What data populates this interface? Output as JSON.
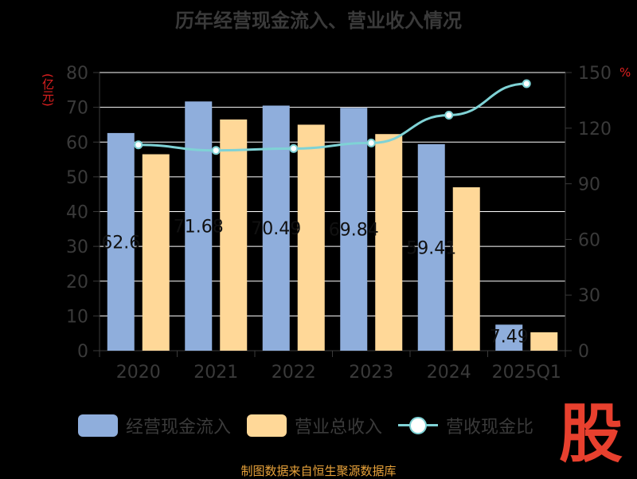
{
  "title": "历年经营现金流入、营业收入情况",
  "left_unit": "(亿元)",
  "right_unit": "%",
  "footer": "制图数据来自恒生聚源数据库",
  "logo_text": "股",
  "colors": {
    "cash_inflow": "#8faedc",
    "revenue": "#ffd898",
    "ratio_line": "#7fd2d5",
    "axis_text": "#3a3a3a",
    "unit_text": "#e02020",
    "grid": "#ffffff",
    "footer": "#e8a23a",
    "logo": "#e8402e"
  },
  "legend": {
    "cash_inflow": "经营现金流入",
    "revenue": "营业总收入",
    "ratio": "营收现金比"
  },
  "chart_data": {
    "type": "bar",
    "categories": [
      "2020",
      "2021",
      "2022",
      "2023",
      "2024",
      "2025Q1"
    ],
    "series": [
      {
        "name": "经营现金流入",
        "values": [
          62.6,
          71.68,
          70.49,
          69.84,
          59.41,
          7.49
        ],
        "labels": [
          "62.6",
          "71.68",
          "70.49",
          "69.84",
          "59.41",
          "7.49"
        ]
      },
      {
        "name": "营业总收入",
        "values": [
          56.5,
          66.5,
          65,
          62.3,
          47,
          5.3
        ]
      },
      {
        "name": "营收现金比",
        "type": "line",
        "axis": "right",
        "values": [
          111,
          108,
          109,
          112,
          127,
          144
        ]
      }
    ],
    "ylim_left": [
      0,
      80
    ],
    "yticks_left": [
      0,
      10,
      20,
      30,
      40,
      50,
      60,
      70,
      80
    ],
    "ylim_right": [
      0,
      150
    ],
    "yticks_right": [
      0,
      30,
      60,
      90,
      120,
      150
    ],
    "grid": true,
    "legend_position": "bottom"
  }
}
